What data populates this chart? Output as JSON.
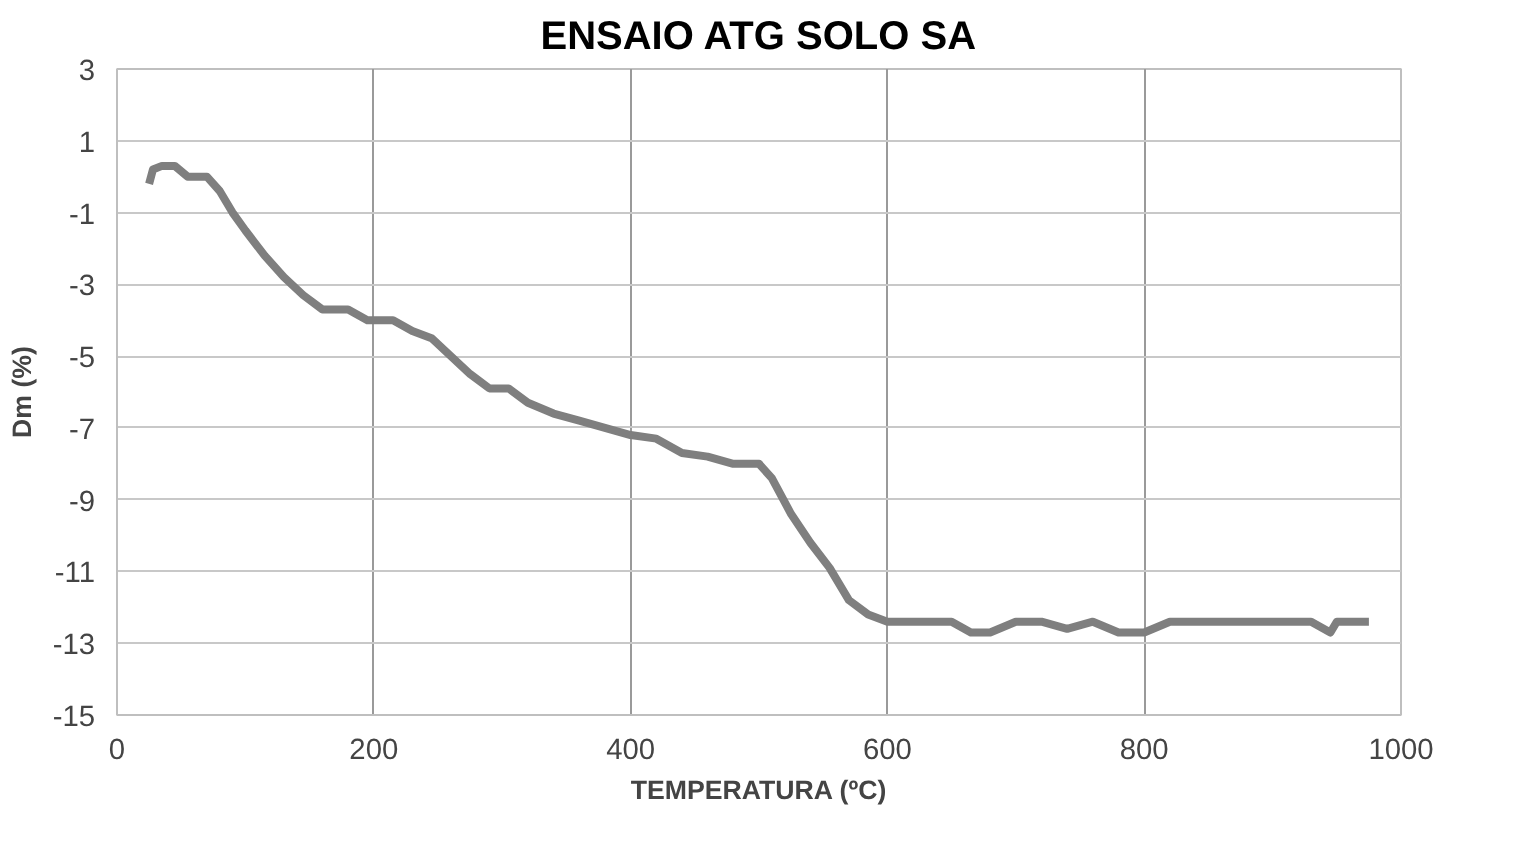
{
  "chart_data": {
    "type": "line",
    "title": "ENSAIO ATG SOLO SA",
    "xlabel": "TEMPERATURA (ºC)",
    "ylabel": "Dm (%)",
    "x": [
      25,
      28,
      35,
      45,
      55,
      70,
      80,
      90,
      100,
      115,
      130,
      145,
      160,
      180,
      195,
      215,
      230,
      245,
      260,
      275,
      290,
      305,
      320,
      340,
      360,
      380,
      400,
      420,
      440,
      460,
      480,
      500,
      510,
      525,
      540,
      555,
      570,
      585,
      600,
      650,
      665,
      680,
      700,
      720,
      740,
      760,
      780,
      800,
      820,
      900,
      930,
      945,
      950,
      975
    ],
    "series": [
      {
        "color": "#7f7f7f",
        "values": [
          -0.2,
          0.2,
          0.3,
          0.3,
          0.0,
          0.0,
          -0.4,
          -1.0,
          -1.5,
          -2.2,
          -2.8,
          -3.3,
          -3.7,
          -3.7,
          -4.0,
          -4.0,
          -4.3,
          -4.5,
          -5.0,
          -5.5,
          -5.9,
          -5.9,
          -6.3,
          -6.6,
          -6.8,
          -7.0,
          -7.2,
          -7.3,
          -7.7,
          -7.8,
          -8.0,
          -8.0,
          -8.4,
          -9.4,
          -10.2,
          -10.9,
          -11.8,
          -12.2,
          -12.4,
          -12.4,
          -12.7,
          -12.7,
          -12.4,
          -12.4,
          -12.6,
          -12.4,
          -12.7,
          -12.7,
          -12.4,
          -12.4,
          -12.4,
          -12.7,
          -12.4,
          -12.4
        ]
      }
    ],
    "xlim": [
      0,
      1000
    ],
    "xticks": [
      0,
      200,
      400,
      600,
      800,
      1000
    ],
    "ylim": [
      -15,
      3
    ],
    "yticks": [
      -15,
      -13,
      -11,
      -9,
      -7,
      -5,
      -3,
      -1,
      1,
      3
    ],
    "grid": true,
    "marker": "none",
    "line_style": "solid"
  }
}
